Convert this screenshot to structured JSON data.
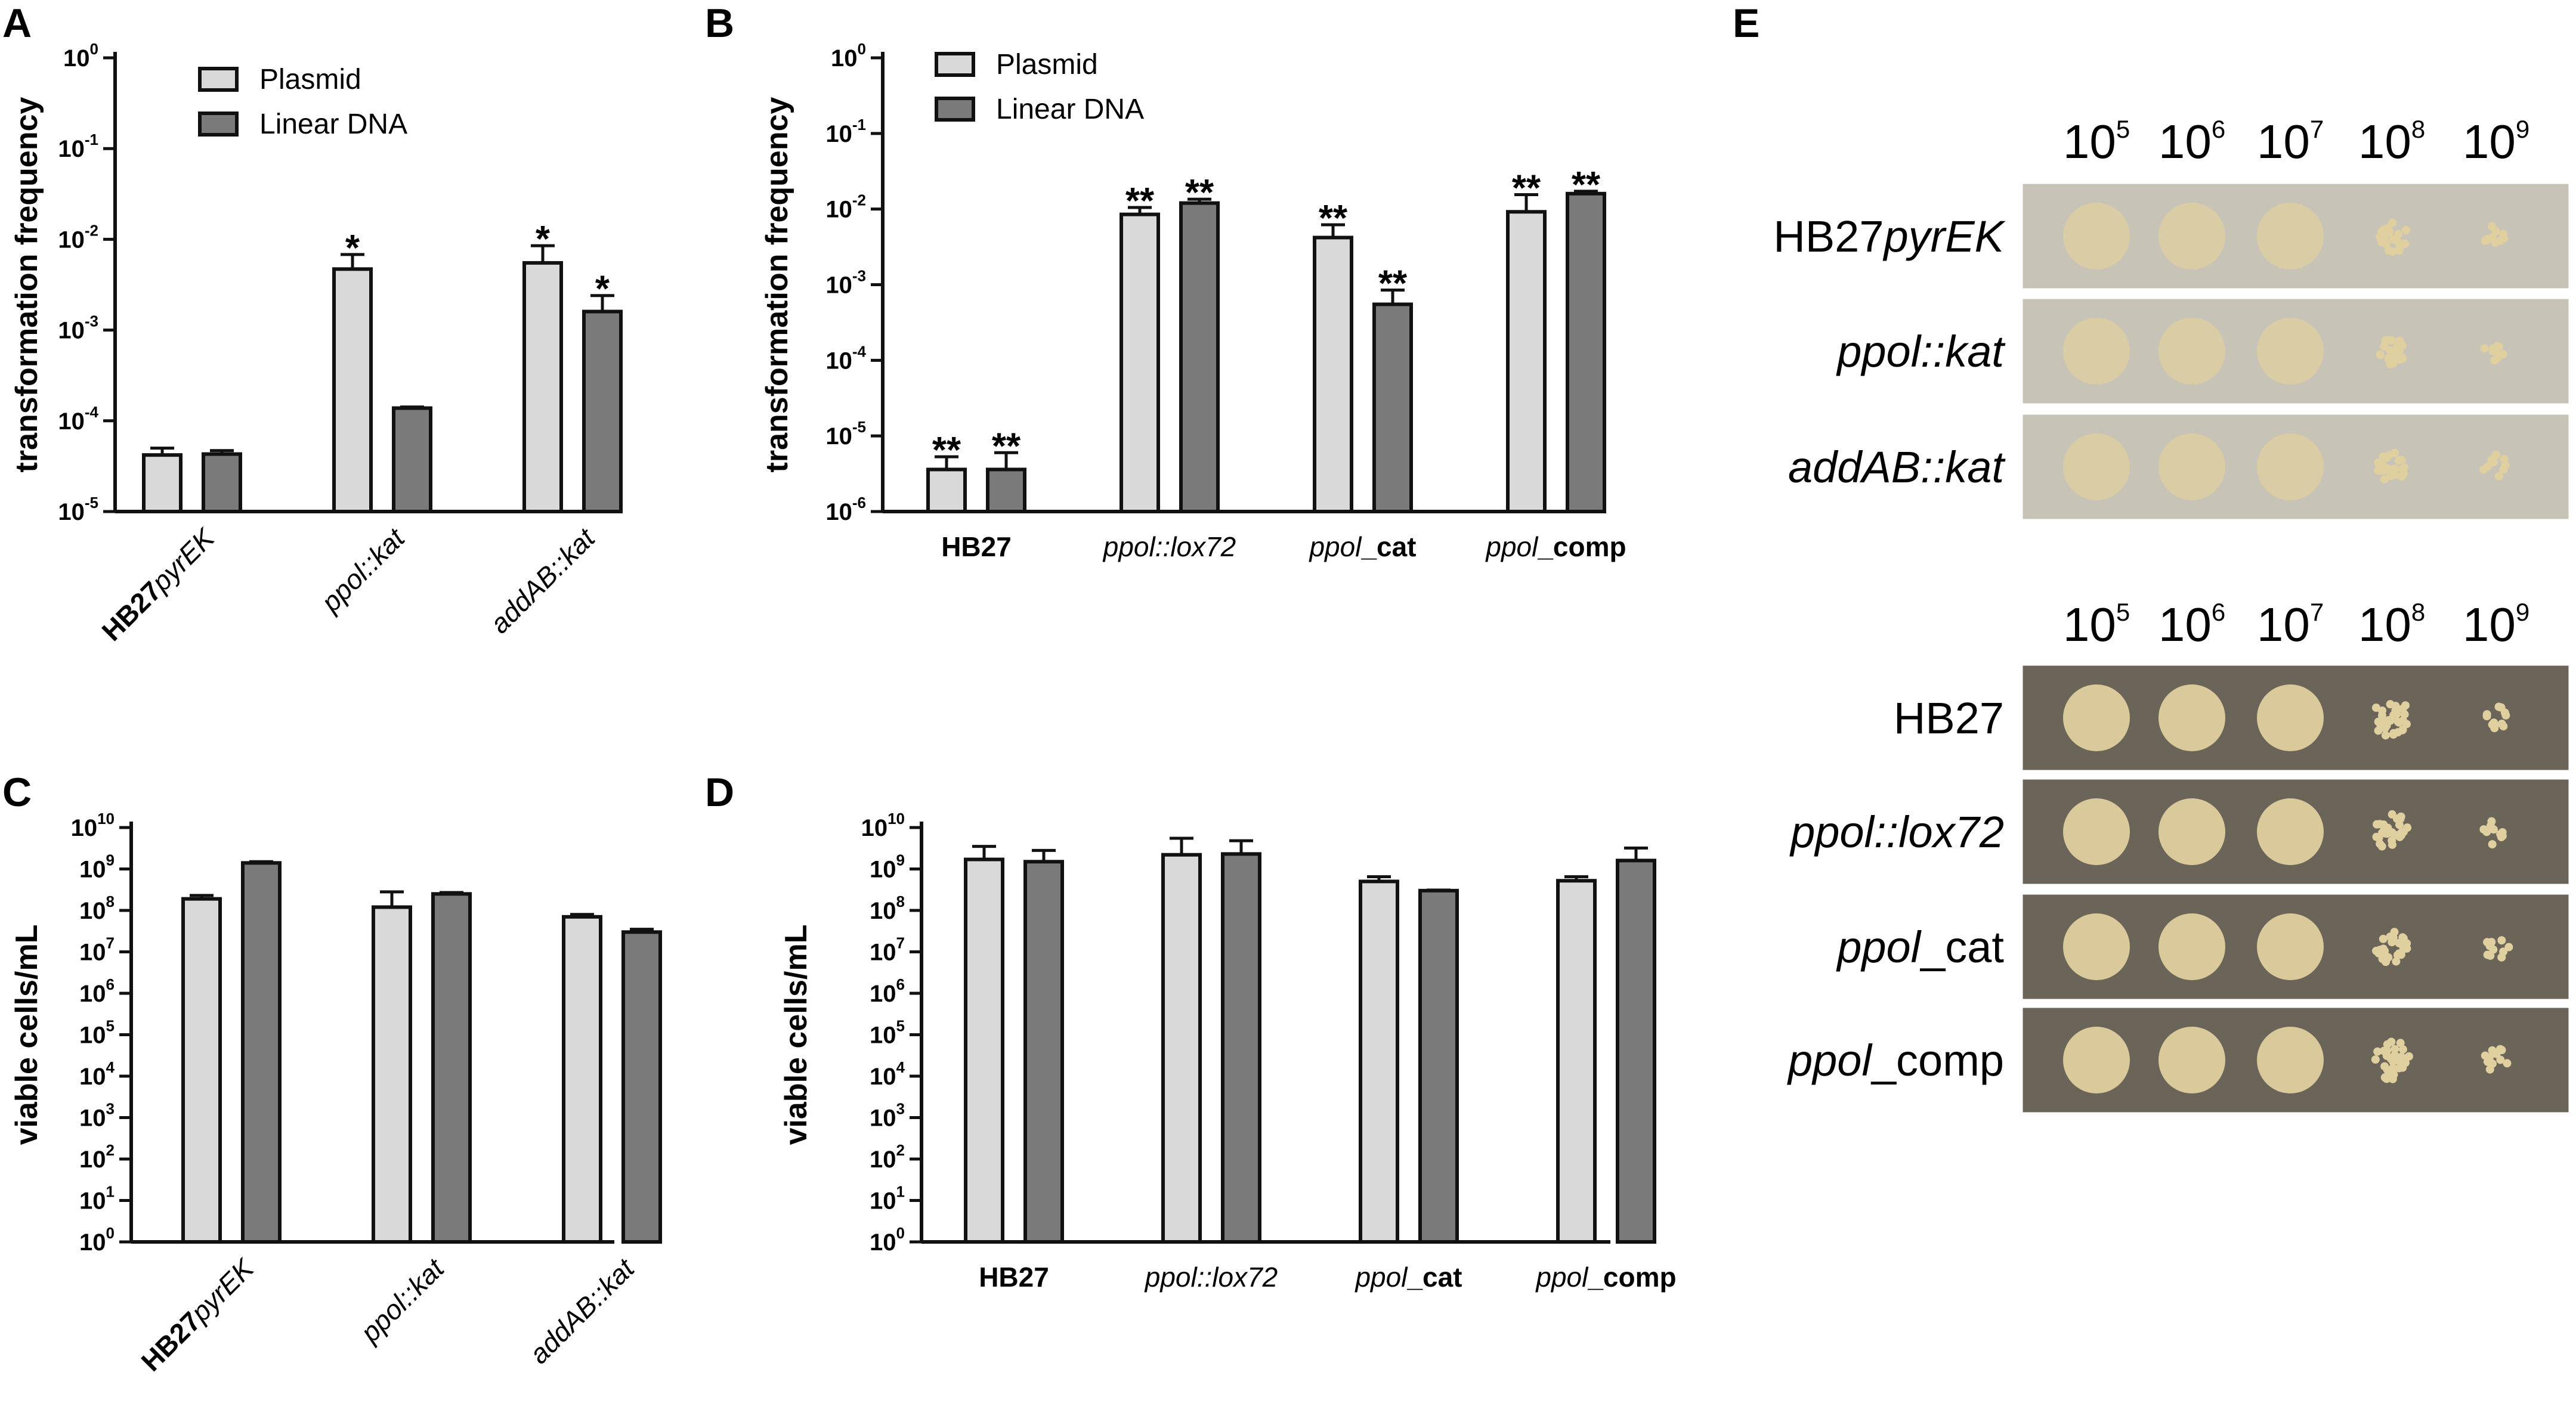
{
  "colors": {
    "plasmid": "#d9d9d9",
    "linear": "#7a7a7a",
    "axis": "#111111",
    "plate_light": "#c8c3b7",
    "plate_dark": "#6b6559",
    "colony": "#e0cf9f"
  },
  "chart_data": [
    {
      "panel": "A",
      "type": "bar",
      "scale": "log",
      "ylabel": "transformation frequency",
      "ylim": [
        1e-05,
        1
      ],
      "y_tick_exponents": [
        -5,
        -4,
        -3,
        -2,
        -1,
        0
      ],
      "legend": [
        "Plasmid",
        "Linear DNA"
      ],
      "legend_placement": "top-left",
      "categories": [
        {
          "label": [
            "HB27",
            "pyrEK"
          ],
          "styles": [
            "bold",
            "italic"
          ]
        },
        {
          "label": [
            "ppol::kat"
          ],
          "styles": [
            "italic"
          ]
        },
        {
          "label": [
            "addAB::kat"
          ],
          "styles": [
            "italic"
          ]
        }
      ],
      "category_rotation": "-45",
      "series": [
        {
          "name": "Plasmid",
          "values": [
            4.2e-05,
            0.0047,
            0.0055
          ],
          "errors": [
            5e-05,
            0.0068,
            0.0085
          ],
          "stars": [
            "",
            "*",
            "*"
          ]
        },
        {
          "name": "Linear DNA",
          "values": [
            4.3e-05,
            0.000138,
            0.0016
          ],
          "errors": [
            4.7e-05,
            0.000142,
            0.0024
          ],
          "stars": [
            "",
            "",
            "*"
          ]
        }
      ]
    },
    {
      "panel": "B",
      "type": "bar",
      "scale": "log",
      "ylabel": "transformation frequency",
      "ylim": [
        1e-06,
        1
      ],
      "y_tick_exponents": [
        -6,
        -5,
        -4,
        -3,
        -2,
        -1,
        0
      ],
      "legend": [
        "Plasmid",
        "Linear DNA"
      ],
      "legend_placement": "top-left",
      "categories": [
        {
          "label": [
            "HB27"
          ],
          "styles": [
            "bold"
          ]
        },
        {
          "label": [
            "ppol::lox72"
          ],
          "styles": [
            "italic"
          ]
        },
        {
          "label": [
            "ppol",
            "_cat"
          ],
          "styles": [
            "italic",
            "bold"
          ]
        },
        {
          "label": [
            "ppol",
            "_comp"
          ],
          "styles": [
            "italic",
            "bold"
          ]
        }
      ],
      "category_rotation": "0",
      "series": [
        {
          "name": "Plasmid",
          "values": [
            3.6e-06,
            0.0085,
            0.0042,
            0.0092
          ],
          "errors": [
            5.3e-06,
            0.0105,
            0.0062,
            0.0155
          ],
          "stars": [
            "**",
            "**",
            "**",
            "**"
          ]
        },
        {
          "name": "Linear DNA",
          "values": [
            3.6e-06,
            0.012,
            0.00055,
            0.016
          ],
          "errors": [
            6e-06,
            0.0135,
            0.00085,
            0.0172
          ],
          "stars": [
            "**",
            "**",
            "**",
            "**"
          ]
        }
      ]
    },
    {
      "panel": "C",
      "type": "bar",
      "scale": "log",
      "ylabel": "viable cells/mL",
      "ylim": [
        1,
        10000000000
      ],
      "y_tick_exponents": [
        0,
        1,
        2,
        3,
        4,
        5,
        6,
        7,
        8,
        9,
        10
      ],
      "categories": [
        {
          "label": [
            "HB27",
            "pyrEK"
          ],
          "styles": [
            "bold",
            "italic"
          ]
        },
        {
          "label": [
            "ppol::kat"
          ],
          "styles": [
            "italic"
          ]
        },
        {
          "label": [
            "addAB::kat"
          ],
          "styles": [
            "italic"
          ]
        }
      ],
      "category_rotation": "-45",
      "series": [
        {
          "name": "Plasmid",
          "values": [
            190000000,
            120000000,
            70000000
          ],
          "errors": [
            230000000,
            280000000,
            80000000
          ],
          "stars": [
            "",
            "",
            ""
          ]
        },
        {
          "name": "Linear DNA",
          "values": [
            1400000000,
            250000000,
            30000000
          ],
          "errors": [
            1500000000,
            270000000,
            35000000
          ],
          "stars": [
            "",
            "",
            ""
          ]
        }
      ]
    },
    {
      "panel": "D",
      "type": "bar",
      "scale": "log",
      "ylabel": "viable cells/mL",
      "ylim": [
        1,
        10000000000
      ],
      "y_tick_exponents": [
        0,
        1,
        2,
        3,
        4,
        5,
        6,
        7,
        8,
        9,
        10
      ],
      "categories": [
        {
          "label": [
            "HB27"
          ],
          "styles": [
            "bold"
          ]
        },
        {
          "label": [
            "ppol::lox72"
          ],
          "styles": [
            "italic"
          ]
        },
        {
          "label": [
            "ppol",
            "_cat"
          ],
          "styles": [
            "italic",
            "bold"
          ]
        },
        {
          "label": [
            "ppol",
            "_comp"
          ],
          "styles": [
            "italic",
            "bold"
          ]
        }
      ],
      "category_rotation": "0",
      "series": [
        {
          "name": "Plasmid",
          "values": [
            1700000000,
            2200000000,
            500000000,
            520000000
          ],
          "errors": [
            3500000000,
            5500000000,
            650000000,
            650000000
          ],
          "stars": [
            "",
            "",
            "",
            ""
          ]
        },
        {
          "name": "Linear DNA",
          "values": [
            1500000000,
            2300000000,
            300000000,
            1600000000
          ],
          "errors": [
            2800000000,
            4800000000,
            310000000,
            3200000000
          ],
          "stars": [
            "",
            "",
            "",
            ""
          ]
        }
      ]
    }
  ],
  "panel_e": {
    "letter": "E",
    "dilutions": [
      "5",
      "6",
      "7",
      "8",
      "9"
    ],
    "dilution_base": "10",
    "groups": [
      {
        "tone": "light",
        "rows": [
          {
            "label": [
              {
                "text": "HB27",
                "italic": false
              },
              {
                "text": "pyrEK",
                "italic": true
              }
            ],
            "growth": [
              1,
              1,
              1,
              0.55,
              0.2
            ]
          },
          {
            "label": [
              {
                "text": "ppol::kat",
                "italic": true
              }
            ],
            "growth": [
              1,
              1,
              0.9,
              0.45,
              0.18
            ]
          },
          {
            "label": [
              {
                "text": "addAB::kat",
                "italic": true
              }
            ],
            "growth": [
              1,
              1,
              1,
              0.5,
              0.2
            ]
          }
        ]
      },
      {
        "tone": "dark",
        "rows": [
          {
            "label": [
              {
                "text": "HB27",
                "italic": false
              }
            ],
            "growth": [
              1,
              1,
              1,
              0.65,
              0.25
            ]
          },
          {
            "label": [
              {
                "text": "ppol::lox72",
                "italic": true
              }
            ],
            "growth": [
              1,
              1,
              1,
              0.6,
              0.25
            ]
          },
          {
            "label": [
              {
                "text": "ppol",
                "italic": true
              },
              {
                "text": "_cat",
                "italic": false
              }
            ],
            "growth": [
              1,
              1,
              1,
              0.6,
              0.2
            ]
          },
          {
            "label": [
              {
                "text": "ppol",
                "italic": true
              },
              {
                "text": "_comp",
                "italic": false
              }
            ],
            "growth": [
              1,
              1,
              1,
              0.65,
              0.22
            ]
          }
        ]
      }
    ]
  }
}
